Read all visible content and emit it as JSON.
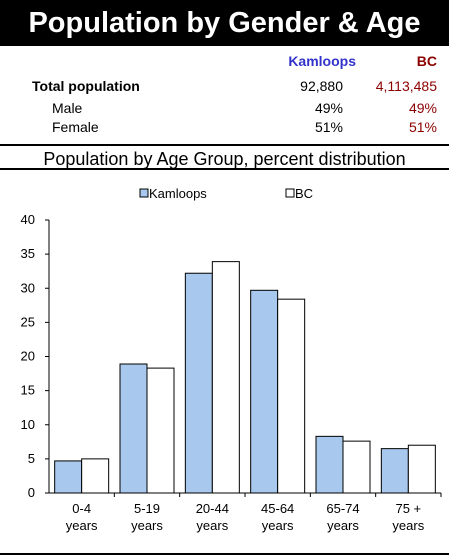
{
  "title": "Population by Gender & Age",
  "stats": {
    "headers": {
      "kamloops": "Kamloops",
      "bc": "BC"
    },
    "rows": [
      {
        "label": "Total population",
        "kamloops": "92,880",
        "bc": "4,113,485"
      },
      {
        "label": "Male",
        "kamloops": "49%",
        "bc": "49%"
      },
      {
        "label": "Female",
        "kamloops": "51%",
        "bc": "51%"
      }
    ]
  },
  "chart_title": "Population by Age Group, percent distribution",
  "colors": {
    "kamloops": "#a9c8ee",
    "bc": "#ffffff",
    "bc_text": "#8b0000",
    "kamloops_text": "#3333cc"
  },
  "chart_data": {
    "type": "bar",
    "title": "Population by Age Group, percent distribution",
    "categories": [
      [
        "0-4",
        "years"
      ],
      [
        "5-19",
        "years"
      ],
      [
        "20-44",
        "years"
      ],
      [
        "45-64",
        "years"
      ],
      [
        "65-74",
        "years"
      ],
      [
        "75 +",
        "years"
      ]
    ],
    "series": [
      {
        "name": "Kamloops",
        "values": [
          4.7,
          18.9,
          32.2,
          29.7,
          8.3,
          6.5
        ]
      },
      {
        "name": "BC",
        "values": [
          5.0,
          18.3,
          33.9,
          28.4,
          7.6,
          7.0
        ]
      }
    ],
    "ylim": [
      0,
      40
    ],
    "yticks": [
      0,
      5,
      10,
      15,
      20,
      25,
      30,
      35,
      40
    ],
    "legend": "top",
    "grid": false
  }
}
